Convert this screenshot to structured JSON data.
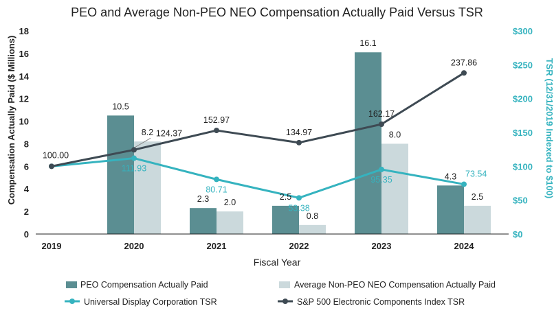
{
  "colors": {
    "peo_bar": "#5b8e92",
    "neo_bar": "#cbd9dc",
    "udc_line": "#35b3bf",
    "sp_line": "#3e4a53",
    "axis": "#222222"
  },
  "chart_data": {
    "type": "bar",
    "title": "PEO and Average Non-PEO NEO Compensation Actually Paid Versus TSR",
    "xlabel": "Fiscal Year",
    "ylabel_left": "Compensation Actually Paid ($ Millions)",
    "ylabel_right": "TSR (12/31/2019 Indexed to $100)",
    "categories": [
      "2019",
      "2020",
      "2021",
      "2022",
      "2023",
      "2024"
    ],
    "ylim_left": [
      0,
      18
    ],
    "yticks_left": [
      "0",
      "2",
      "4",
      "6",
      "8",
      "10",
      "12",
      "14",
      "16",
      "18"
    ],
    "ylim_right": [
      0,
      300
    ],
    "yticks_right": [
      "$0",
      "$50",
      "$100",
      "$150",
      "$200",
      "$250",
      "$300"
    ],
    "grid": false,
    "legend_position": "bottom",
    "bar_series": [
      {
        "name": "PEO Compensation Actually Paid",
        "values": [
          null,
          10.5,
          2.3,
          2.5,
          16.1,
          4.3
        ],
        "labels": [
          "",
          "10.5",
          "2.3",
          "2.5",
          "16.1",
          "4.3"
        ]
      },
      {
        "name": "Average Non-PEO NEO Compensation Actually Paid",
        "values": [
          null,
          8.2,
          2.0,
          0.8,
          8.0,
          2.5
        ],
        "labels": [
          "",
          "8.2",
          "2.0",
          "0.8",
          "8.0",
          "2.5"
        ]
      }
    ],
    "line_series": [
      {
        "name": "Universal Display Corporation TSR",
        "values": [
          100.0,
          111.93,
          80.71,
          53.38,
          95.35,
          73.54
        ],
        "labels": [
          "",
          "111.93",
          "80.71",
          "53.38",
          "95.35",
          "73.54"
        ]
      },
      {
        "name": "S&P 500 Electronic Components Index TSR",
        "values": [
          100.0,
          124.37,
          152.97,
          134.97,
          162.17,
          237.86
        ],
        "labels": [
          "100.00",
          "124.37",
          "152.97",
          "134.97",
          "162.17",
          "237.86"
        ]
      }
    ]
  }
}
